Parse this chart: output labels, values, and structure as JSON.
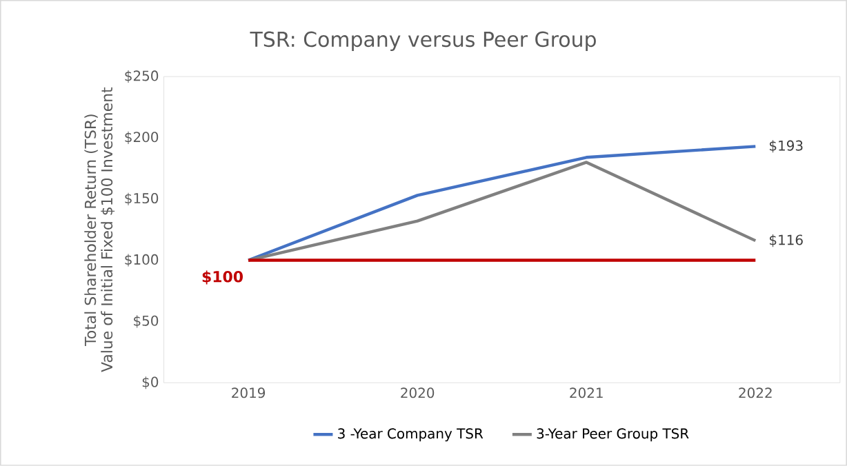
{
  "chart_data": {
    "type": "line",
    "title": "TSR: Company versus Peer Group",
    "ylabel": [
      "Total Shareholder Return (TSR)",
      "Value of Initial Fixed $100 Investment"
    ],
    "categories": [
      "2019",
      "2020",
      "2021",
      "2022"
    ],
    "series": [
      {
        "name": "3 -Year Company TSR",
        "color": "#4472c4",
        "values": [
          100,
          153,
          184,
          193
        ],
        "value_labels": [
          null,
          null,
          null,
          "$193"
        ]
      },
      {
        "name": "3-Year Peer Group TSR",
        "color": "#808080",
        "values": [
          100,
          132,
          180,
          116
        ],
        "value_labels": [
          null,
          null,
          null,
          "$116"
        ]
      },
      {
        "color": "#c00000",
        "values": [
          100,
          100,
          100,
          100
        ],
        "value_labels": [
          "$100",
          null,
          null,
          null
        ]
      }
    ],
    "ylim": [
      0,
      250
    ],
    "yticks": [
      {
        "value": 0,
        "label": "$0"
      },
      {
        "value": 50,
        "label": "$50"
      },
      {
        "value": 100,
        "label": "$100"
      },
      {
        "value": 150,
        "label": "$150"
      },
      {
        "value": 200,
        "label": "$200"
      },
      {
        "value": 250,
        "label": "$250"
      }
    ],
    "grid": false,
    "legend": "bottom",
    "marker": "none",
    "line_style": "solid"
  }
}
